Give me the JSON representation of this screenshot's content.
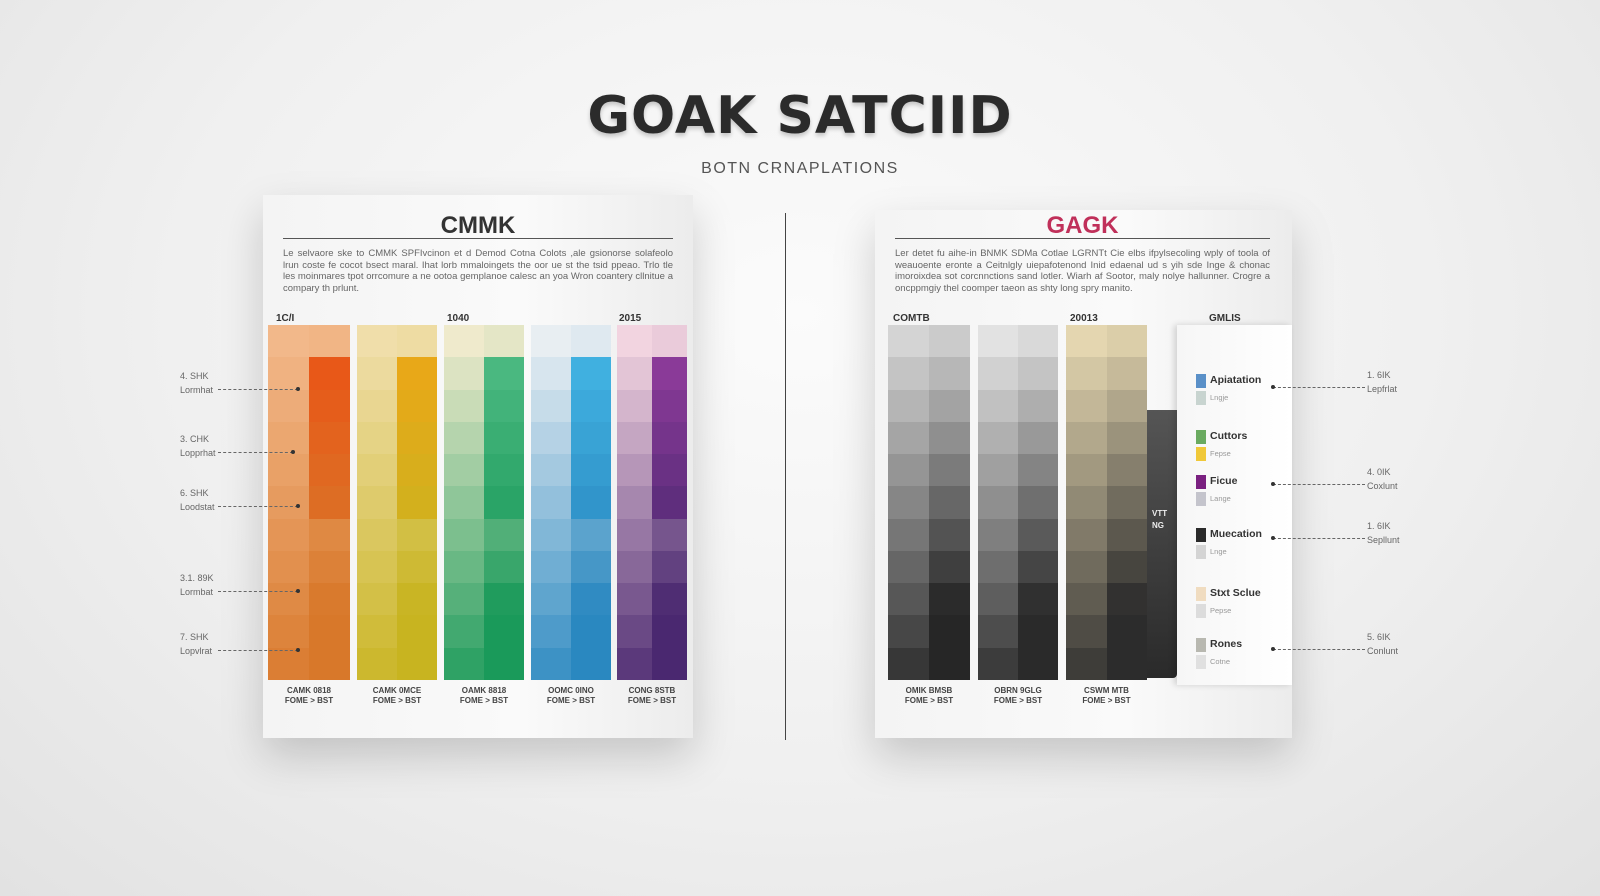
{
  "header": {
    "title": "GOAK SATCIID",
    "subtitle": "BOTN CRNAPLATIONS"
  },
  "left_panel": {
    "title": "CMMK",
    "title_color": "#333333",
    "paragraph": "Le selvaore ske to CMMK SPFIvcinon et d Demod Cotna Colots ,ale gsionorse solafeolo lrun coste fe cocot bsect maral. Ihat lorb mmaloingets the oor ue st the tsid ppeao. Trlo tle les moinmares tpot orrcomure a ne ootoa gemplanoe calesc an yoa Wron coantery cllnitue a compary th prlunt.",
    "column_headers": [
      "1C/I",
      "1040",
      "2015"
    ],
    "columns": [
      {
        "label": [
          "CAMK 0818",
          "FOME > BST"
        ],
        "light": "#f2b88a",
        "dark": "#d8782a",
        "accent": "#e85818"
      },
      {
        "label": [
          "CAMK 0MCE",
          "FOME > BST"
        ],
        "light": "#f0deaa",
        "dark": "#c8b420",
        "accent": "#e8a818"
      },
      {
        "label": [
          "OAMK 8818",
          "FOME > BST"
        ],
        "light": "#efeacc",
        "dark": "#1a9a5a",
        "accent": "#4ab880"
      },
      {
        "label": [
          "OOMC 0INO",
          "FOME > BST"
        ],
        "light": "#e8eef2",
        "dark": "#2a88c0",
        "accent": "#40b0e0"
      },
      {
        "label": [
          "CONG 8STB",
          "FOME > BST"
        ],
        "light": "#f2d4e0",
        "dark": "#4a2870",
        "accent": "#8a3a98"
      }
    ],
    "annotations": [
      {
        "value": "4. SHK",
        "label": "Lormhat"
      },
      {
        "value": "3. CHK",
        "label": "Lopprhat"
      },
      {
        "value": "6. SHK",
        "label": "Loodstat"
      },
      {
        "value": "3.1. 89K",
        "label": "Lormbat"
      },
      {
        "value": "7. SHK",
        "label": "Lopvlrat"
      }
    ]
  },
  "right_panel": {
    "title": "GAGK",
    "title_color": "#c0305a",
    "paragraph": "Ler detet fu aihe-in BNMK SDMa Cotlae LGRNTt Cie elbs ifpylsecoling wply of toola of weauoente eronte a Ceitnlgly uiepafotenond Inid edaenal ud s yih sde Inge & chonac imoroixdea sot corcnnctions sand lotler. Wiarh af Sootor, maly nolye hallunner. Crogre a oncppmgiy thel coomper taeon as shty long spry manito.",
    "column_headers": [
      "COMTB",
      "20013",
      "GMLIS"
    ],
    "columns": [
      {
        "label": [
          "OMIK BMSB",
          "FOME > BST"
        ],
        "light": "#d4d4d4",
        "dark": "#262626"
      },
      {
        "label": [
          "OBRN 9GLG",
          "FOME > BST"
        ],
        "light": "#e2e2e2",
        "dark": "#2a2a2a"
      },
      {
        "label": [
          "CSWM MTB",
          "FOME > BST"
        ],
        "light": "#e4d6b0",
        "dark": "#2c2c2c"
      }
    ],
    "side_strip_text": [
      "VTT",
      "NG"
    ],
    "legend": [
      {
        "name": "Apiatation",
        "sub": "Lngje",
        "color": "#5a90c8",
        "color2": "#c8d4d0"
      },
      {
        "name": "Cuttors",
        "sub": "Fepse",
        "color": "#6aaa60",
        "color2": "#f0c838"
      },
      {
        "name": "Ficue",
        "sub": "Lange",
        "color": "#7a2080",
        "color2": "#c4c4cc"
      },
      {
        "name": "Muecation",
        "sub": "Lnge",
        "color": "#2a2a2a",
        "color2": "#d4d4d4"
      },
      {
        "name": "Stxt Sclue",
        "sub": "Pepse",
        "color": "#f0dcc0",
        "color2": "#dcdcdc"
      },
      {
        "name": "Rones",
        "sub": "Cotne",
        "color": "#b8b8b0",
        "color2": "#e0e0e0"
      }
    ],
    "annotations": [
      {
        "value": "1. 6IK",
        "label": "Lepfrlat"
      },
      {
        "value": "4. 0IK",
        "label": "Coxlunt"
      },
      {
        "value": "1. 6IK",
        "label": "Sepllunt"
      },
      {
        "value": "5. 6IK",
        "label": "Conlunt"
      }
    ]
  }
}
